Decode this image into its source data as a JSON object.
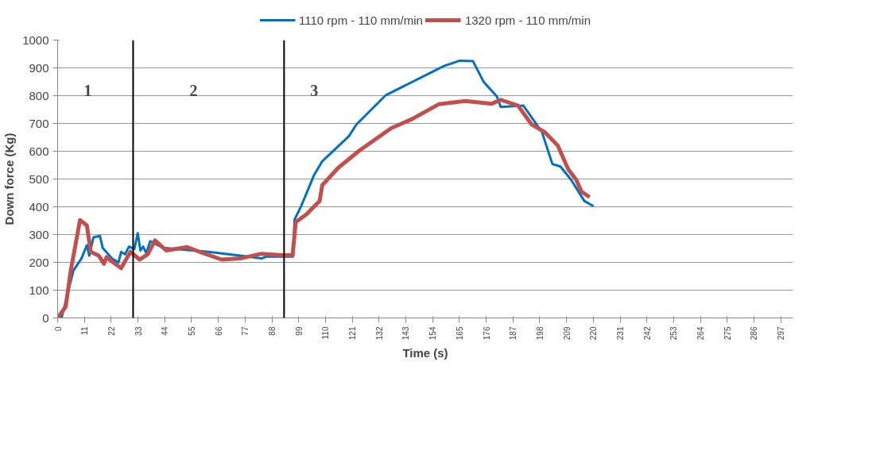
{
  "chart_data": {
    "type": "line",
    "xlabel": "Time (s)",
    "ylabel": "Down force (Kg)",
    "xlim": [
      0,
      302
    ],
    "xticks": [
      0,
      11,
      22,
      33,
      44,
      55,
      66,
      77,
      88,
      99,
      110,
      121,
      132,
      143,
      154,
      165,
      176,
      187,
      198,
      209,
      220,
      231,
      242,
      253,
      264,
      275,
      286,
      297
    ],
    "ylim": [
      0,
      1000
    ],
    "yticks": [
      0,
      100,
      200,
      300,
      400,
      500,
      600,
      700,
      800,
      900,
      1000
    ],
    "grid": "y",
    "legend": "top",
    "line_style": "solid",
    "marker": "none",
    "series": [
      {
        "name": "1110 rpm - 110 mm/min",
        "color": "#0070c0",
        "x": [
          1.6,
          6.5,
          9.8,
          12,
          13,
          14.7,
          17.4,
          18.5,
          22.3,
          25,
          26.1,
          27.7,
          29.3,
          31.5,
          32.9,
          34,
          35.1,
          36.4,
          38,
          43.5,
          62,
          75,
          83.7,
          85.9,
          96.7,
          97.3,
          100,
          105.4,
          108.7,
          119.6,
          122.8,
          134.8,
          143.5,
          152.2,
          158.7,
          165.2,
          170.6,
          175,
          180.4,
          182,
          191.3,
          198.9,
          203.2,
          206.5,
          210.9,
          216.3,
          220.1
        ],
        "values": [
          0,
          171,
          214,
          262,
          224,
          290,
          295,
          252,
          214,
          200,
          238,
          229,
          257,
          248,
          305,
          243,
          257,
          233,
          276,
          252,
          238,
          224,
          214,
          221,
          221,
          354,
          402,
          516,
          564,
          654,
          697,
          802,
          840,
          878,
          907,
          926,
          924,
          849,
          797,
          759,
          764,
          669,
          554,
          545,
          497,
          421,
          402
        ]
      },
      {
        "name": "1320 rpm - 110 mm/min",
        "color": "#c0504d",
        "x": [
          0,
          3.3,
          5.4,
          9.2,
          12,
          13.6,
          16.9,
          19,
          20.1,
          22.8,
          26.1,
          29.9,
          33.7,
          37,
          40,
          44.6,
          53.2,
          59.8,
          67.4,
          75,
          83.7,
          92.4,
          96.5,
          97.8,
          102.2,
          107.6,
          108.7,
          115.2,
          123.9,
          137,
          145.6,
          156.5,
          167.4,
          178.3,
          182,
          189.1,
          194.6,
          200,
          205.4,
          209.7,
          213,
          215.2,
          218.5
        ],
        "values": [
          0,
          40,
          171,
          352,
          333,
          238,
          224,
          195,
          219,
          200,
          179,
          238,
          210,
          229,
          279,
          243,
          255,
          233,
          210,
          214,
          231,
          226,
          226,
          345,
          373,
          421,
          478,
          540,
          602,
          683,
          716,
          769,
          781,
          771,
          785,
          764,
          697,
          669,
          621,
          535,
          497,
          454,
          435
        ]
      }
    ],
    "ref_lines": [
      {
        "axis": "x",
        "value": 31,
        "color": "#000000"
      },
      {
        "axis": "x",
        "value": 93,
        "color": "#000000"
      }
    ],
    "annotations": [
      "1",
      "2",
      "3"
    ]
  }
}
